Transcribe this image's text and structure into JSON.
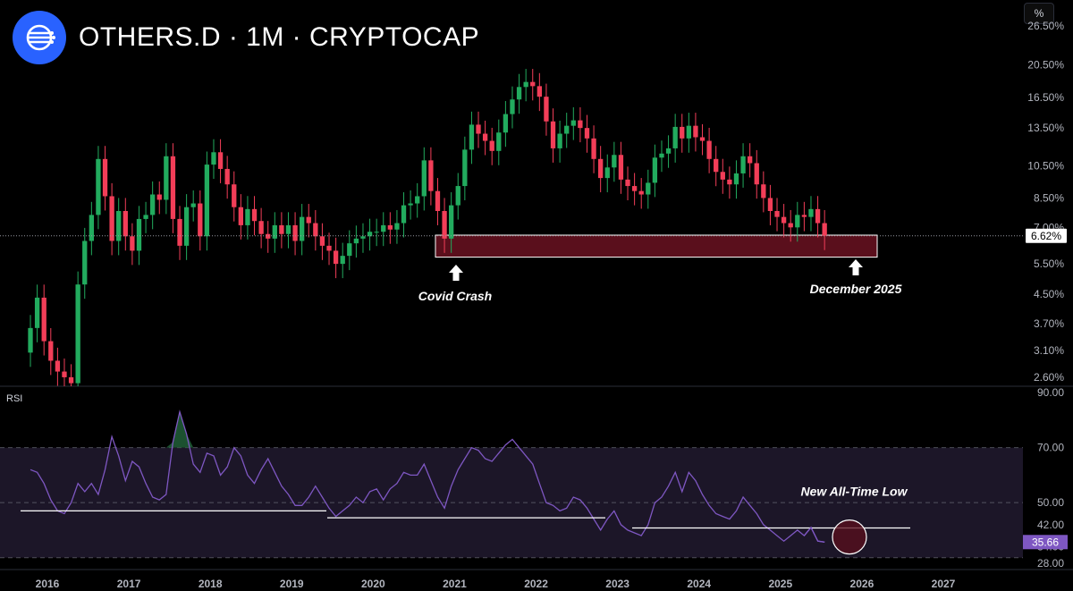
{
  "header": {
    "title": "OTHERS.D · 1M · CRYPTOCAP",
    "scale_button": "%"
  },
  "colors": {
    "background": "#000000",
    "up": "#22ab5e",
    "down": "#f23e58",
    "rsi_line": "#7e57c2",
    "rsi_band": "#1c1628",
    "highlight_box": "#5a0f1c",
    "current_price_bg": "#ffffff",
    "rsi_value_bg": "#7e57c2",
    "logo": "#2962ff"
  },
  "chart_data": [
    {
      "type": "candlestick",
      "yscale": "log",
      "ylim": [
        2.45,
        30
      ],
      "y_ticks": [
        "26.50%",
        "20.50%",
        "16.50%",
        "13.50%",
        "10.50%",
        "8.50%",
        "7.00%",
        "5.50%",
        "4.50%",
        "3.70%",
        "3.10%",
        "2.60%"
      ],
      "x_ticks": [
        "2016",
        "2017",
        "2018",
        "2019",
        "2020",
        "2021",
        "2022",
        "2023",
        "2024",
        "2025",
        "2026",
        "2027"
      ],
      "current_value_label": "6.62%",
      "annotations": [
        "Covid Crash",
        "December 2025"
      ],
      "closes": [
        3.6,
        4.4,
        3.3,
        2.9,
        2.7,
        2.6,
        2.5,
        4.8,
        6.4,
        7.6,
        11.0,
        8.6,
        6.4,
        7.8,
        6.6,
        6.0,
        7.4,
        7.6,
        8.7,
        8.4,
        11.2,
        7.4,
        6.2,
        8.0,
        8.2,
        6.6,
        10.6,
        11.5,
        10.3,
        9.3,
        8.0,
        7.1,
        7.9,
        7.3,
        6.7,
        6.5,
        7.1,
        6.7,
        7.1,
        6.4,
        7.5,
        7.2,
        6.6,
        6.2,
        6.0,
        5.5,
        5.8,
        6.3,
        6.5,
        6.6,
        6.8,
        6.8,
        7.1,
        6.9,
        7.2,
        8.1,
        8.2,
        8.6,
        10.9,
        8.9,
        7.8,
        6.5,
        8.1,
        9.2,
        11.7,
        13.8,
        13.0,
        12.4,
        11.6,
        13.1,
        14.8,
        16.3,
        17.7,
        18.3,
        17.8,
        16.6,
        14.1,
        11.8,
        13.0,
        13.7,
        14.2,
        13.5,
        12.6,
        11.0,
        9.7,
        10.4,
        11.3,
        9.6,
        9.2,
        8.9,
        8.7,
        9.4,
        11.1,
        11.4,
        11.8,
        13.6,
        12.6,
        13.7,
        12.7,
        12.4,
        11.0,
        10.1,
        9.6,
        9.3,
        10.0,
        11.2,
        10.7,
        9.3,
        8.5,
        7.8,
        7.5,
        7.2,
        7.0,
        7.6,
        7.5,
        7.9,
        7.2,
        6.62
      ],
      "rsi": {
        "label": "RSI",
        "ylim": [
          26,
          92
        ],
        "y_ticks": [
          "90.00",
          "70.00",
          "50.00",
          "42.00",
          "34.00",
          "28.00"
        ],
        "band": [
          30,
          70
        ],
        "current_value_label": "35.66",
        "annotation": "New All-Time Low",
        "values": [
          62,
          61,
          57,
          51,
          47,
          46,
          50,
          57,
          54,
          57,
          53,
          62,
          74,
          67,
          58,
          65,
          63,
          57,
          52,
          51,
          53,
          72,
          83,
          75,
          64,
          61,
          68,
          67,
          60,
          63,
          70,
          67,
          60,
          57,
          62,
          66,
          61,
          56,
          53,
          49,
          49,
          52,
          56,
          52,
          48,
          45,
          47,
          49,
          52,
          50,
          54,
          55,
          51,
          55,
          57,
          61,
          60,
          60,
          64,
          58,
          52,
          48,
          56,
          62,
          66,
          70,
          69,
          66,
          65,
          68,
          71,
          73,
          70,
          67,
          64,
          57,
          50,
          49,
          47,
          48,
          52,
          51,
          48,
          44,
          40,
          44,
          47,
          42,
          40,
          39,
          38,
          42,
          50,
          52,
          56,
          61,
          54,
          61,
          58,
          53,
          49,
          46,
          45,
          44,
          47,
          52,
          49,
          46,
          42,
          40,
          38,
          36,
          38,
          40,
          38,
          41,
          36,
          35.66
        ]
      }
    }
  ]
}
